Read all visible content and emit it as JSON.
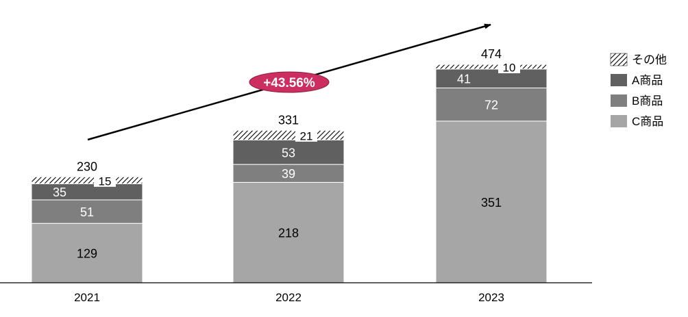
{
  "chart_data": {
    "type": "bar",
    "stacked": true,
    "categories": [
      "2021",
      "2022",
      "2023"
    ],
    "series": [
      {
        "name": "C商品",
        "values": [
          129,
          218,
          351
        ],
        "color": "#a6a6a6",
        "pattern": "solid"
      },
      {
        "name": "B商品",
        "values": [
          51,
          39,
          72
        ],
        "color": "#7f7f7f",
        "pattern": "solid"
      },
      {
        "name": "A商品",
        "values": [
          35,
          53,
          41
        ],
        "color": "#606060",
        "pattern": "solid"
      },
      {
        "name": "その他",
        "values": [
          15,
          21,
          10
        ],
        "color": "#000000",
        "pattern": "diagonal-hatch"
      }
    ],
    "totals": [
      230,
      331,
      474
    ],
    "growth_annotation": {
      "label": "+43.56%",
      "color": "#cc2f5f",
      "text_color": "#ffffff"
    },
    "legend": {
      "placement": "right",
      "order": [
        "その他",
        "A商品",
        "B商品",
        "C商品"
      ]
    },
    "ylim": [
      0,
      500
    ],
    "grid": false,
    "title": "",
    "xlabel": "",
    "ylabel": ""
  }
}
